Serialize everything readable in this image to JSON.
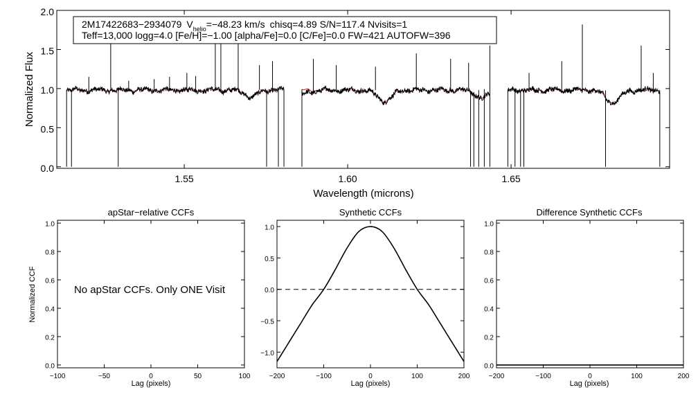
{
  "colors": {
    "axis": "#000000",
    "observed": "#000000",
    "model": "#d11a1a",
    "zero_line": "#000000"
  },
  "chart_data": [
    {
      "type": "line",
      "title": "",
      "xlabel": "Wavelength (microns)",
      "ylabel": "Normalized Flux",
      "xlim": [
        1.511,
        1.6985
      ],
      "ylim": [
        -0.02,
        2.0
      ],
      "xticks": [
        1.55,
        1.6,
        1.65
      ],
      "xtick_labels": [
        "1.55",
        "1.60",
        "1.65"
      ],
      "yticks": [
        0.0,
        0.5,
        1.0,
        1.5,
        2.0
      ],
      "ytick_labels": [
        "0.0",
        "0.5",
        "1.0",
        "1.5",
        "2.0"
      ],
      "chips": [
        [
          1.514,
          1.5805
        ],
        [
          1.586,
          1.6435
        ],
        [
          1.649,
          1.6955
        ]
      ],
      "annotation": {
        "star_id": "2M17422683−2934079",
        "v_sym": "V",
        "v_sub": "helio",
        "v_value": "=−48.23 km/s",
        "stats": "chisq=4.89  S/N=117.4  Nvisits=1",
        "line2": "Teff=13,000 logg=4.0 [Fe/H]=−1.00 [alpha/Fe]=0.0 [C/Fe]=0.0 FW=421 AUTOFW=396"
      },
      "series": [
        {
          "name": "observed spectrum",
          "color": "#000000",
          "level": 0.98
        },
        {
          "name": "model spectrum",
          "color": "#d11a1a",
          "level": 0.98
        }
      ],
      "absorption_features": [
        {
          "x": 1.5705,
          "depth": 0.09,
          "width": 0.0018
        },
        {
          "x": 1.6113,
          "depth": 0.14,
          "width": 0.0022
        },
        {
          "x": 1.6411,
          "depth": 0.1,
          "width": 0.002
        },
        {
          "x": 1.6811,
          "depth": 0.16,
          "width": 0.0022
        }
      ],
      "emission_spikes": [
        {
          "x": 1.5275,
          "y": 1.72
        },
        {
          "x": 1.5208,
          "y": 1.15
        },
        {
          "x": 1.533,
          "y": 1.1
        },
        {
          "x": 1.5408,
          "y": 1.12
        },
        {
          "x": 1.5455,
          "y": 1.15
        },
        {
          "x": 1.5508,
          "y": 1.2
        },
        {
          "x": 1.5535,
          "y": 1.16
        },
        {
          "x": 1.5595,
          "y": 1.75
        },
        {
          "x": 1.5612,
          "y": 1.78
        },
        {
          "x": 1.5665,
          "y": 1.9
        },
        {
          "x": 1.573,
          "y": 1.3
        },
        {
          "x": 1.577,
          "y": 1.35
        },
        {
          "x": 1.5895,
          "y": 1.38
        },
        {
          "x": 1.5965,
          "y": 1.3
        },
        {
          "x": 1.6085,
          "y": 1.28
        },
        {
          "x": 1.621,
          "y": 1.45
        },
        {
          "x": 1.6315,
          "y": 1.38
        },
        {
          "x": 1.637,
          "y": 1.33
        },
        {
          "x": 1.6435,
          "y": 1.55
        },
        {
          "x": 1.6555,
          "y": 1.2
        },
        {
          "x": 1.6655,
          "y": 1.35
        },
        {
          "x": 1.6718,
          "y": 1.82
        },
        {
          "x": 1.6898,
          "y": 1.55
        },
        {
          "x": 1.6935,
          "y": 1.2
        }
      ],
      "dropouts": [
        1.5155,
        1.5298,
        1.5752,
        1.5788,
        1.6376,
        1.6386,
        1.6401,
        1.6418,
        1.6512,
        1.6529,
        1.6539,
        1.6789
      ]
    },
    {
      "type": "line",
      "title": "apStar−relative CCFs",
      "xlabel": "Lag (pixels)",
      "ylabel": "Normalized CCF",
      "xlim": [
        -100,
        100
      ],
      "ylim": [
        -0.02,
        1.02
      ],
      "xticks": [
        -100,
        -50,
        0,
        50,
        100
      ],
      "xtick_labels": [
        "−100",
        "−50",
        "0",
        "50",
        "100"
      ],
      "yticks": [
        0.0,
        0.2,
        0.4,
        0.6,
        0.8,
        1.0
      ],
      "ytick_labels": [
        "0.0",
        "0.2",
        "0.4",
        "0.6",
        "0.8",
        "1.0"
      ],
      "message": "No apStar CCFs.  Only ONE Visit",
      "series": []
    },
    {
      "type": "line",
      "title": "Synthetic CCFs",
      "xlabel": "Lag (pixels)",
      "ylabel": "",
      "xlim": [
        -200,
        200
      ],
      "ylim": [
        -1.25,
        1.1
      ],
      "xticks": [
        -200,
        -100,
        0,
        100,
        200
      ],
      "xtick_labels": [
        "−200",
        "−100",
        "0",
        "100",
        "200"
      ],
      "yticks": [
        -1.0,
        -0.5,
        0.0,
        0.5,
        1.0
      ],
      "ytick_labels": [
        "−1.0",
        "−0.5",
        "0.0",
        "0.5",
        "1.0"
      ],
      "series": [
        {
          "name": "synthetic CCF",
          "x": [
            -200,
            -175,
            -150,
            -125,
            -100,
            -75,
            -50,
            -25,
            0,
            25,
            50,
            75,
            100,
            125,
            150,
            175,
            200
          ],
          "values": [
            -1.15,
            -0.85,
            -0.55,
            -0.25,
            0.0,
            0.32,
            0.66,
            0.92,
            1.0,
            0.92,
            0.66,
            0.32,
            0.0,
            -0.25,
            -0.55,
            -0.85,
            -1.15
          ]
        }
      ],
      "reference_line": {
        "y": 0.0,
        "style": "dashed"
      }
    },
    {
      "type": "line",
      "title": "Difference Synthetic CCFs",
      "xlabel": "Lag (pixels)",
      "ylabel": "",
      "xlim": [
        -200,
        200
      ],
      "ylim": [
        -0.02,
        1.02
      ],
      "xticks": [
        -200,
        -100,
        0,
        100,
        200
      ],
      "xtick_labels": [
        "−200",
        "−100",
        "0",
        "100",
        "200"
      ],
      "yticks": [
        0.0,
        0.2,
        0.4,
        0.6,
        0.8,
        1.0
      ],
      "ytick_labels": [
        "0.0",
        "0.2",
        "0.4",
        "0.6",
        "0.8",
        "1.0"
      ],
      "series": [
        {
          "name": "difference CCF",
          "x": [
            -200,
            200
          ],
          "values": [
            0.0,
            0.0
          ]
        }
      ]
    }
  ]
}
